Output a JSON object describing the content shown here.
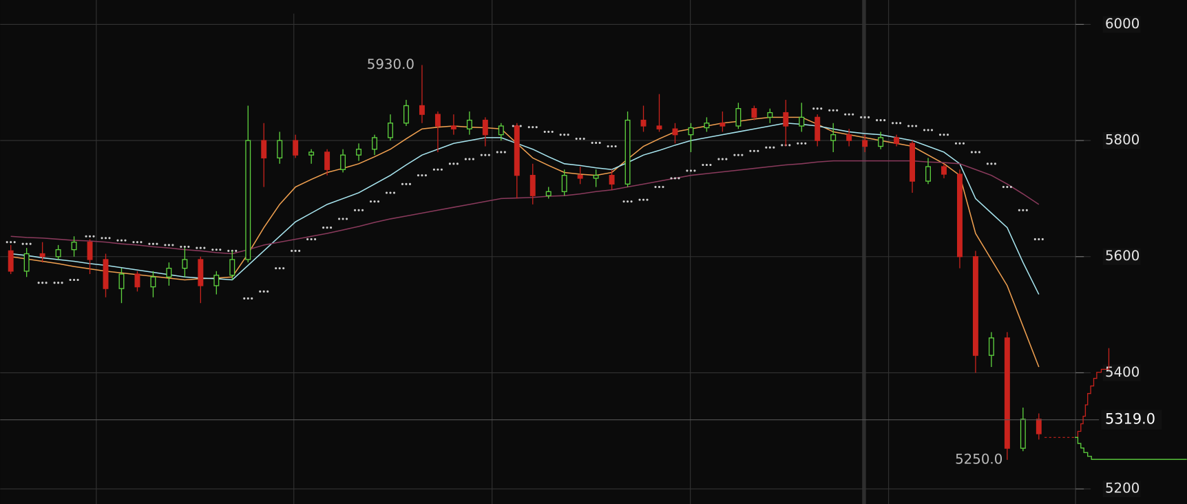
{
  "chart_data": {
    "type": "candlestick",
    "ylim": [
      5174,
      6042
    ],
    "yticks": [
      5200,
      5400,
      5600,
      5800,
      6000
    ],
    "up_color": "#5fd33f",
    "down_color": "#c9231d",
    "grid": true,
    "open": [
      5610,
      5575,
      5605,
      5600,
      5612,
      5625,
      5595,
      5545,
      5570,
      5548,
      5565,
      5580,
      5595,
      5550,
      5568,
      5595,
      5800,
      5770,
      5800,
      5775,
      5780,
      5750,
      5775,
      5785,
      5805,
      5830,
      5860,
      5845,
      5825,
      5820,
      5835,
      5810,
      5825,
      5740,
      5705,
      5712,
      5740,
      5735,
      5740,
      5725,
      5835,
      5825,
      5820,
      5810,
      5822,
      5830,
      5825,
      5855,
      5840,
      5848,
      5825,
      5840,
      5800,
      5810,
      5800,
      5790,
      5805,
      5795,
      5730,
      5755,
      5742,
      5600,
      5430,
      5460,
      5270,
      5320
    ],
    "high": [
      5620,
      5615,
      5625,
      5620,
      5635,
      5630,
      5605,
      5580,
      5575,
      5575,
      5590,
      5615,
      5600,
      5575,
      5610,
      5860,
      5830,
      5815,
      5810,
      5785,
      5785,
      5785,
      5795,
      5810,
      5845,
      5870,
      5930,
      5850,
      5845,
      5850,
      5840,
      5830,
      5830,
      5760,
      5720,
      5750,
      5755,
      5750,
      5750,
      5850,
      5860,
      5880,
      5830,
      5830,
      5840,
      5850,
      5865,
      5860,
      5855,
      5870,
      5865,
      5845,
      5830,
      5820,
      5810,
      5815,
      5810,
      5800,
      5770,
      5760,
      5750,
      5610,
      5470,
      5470,
      5340,
      5330
    ],
    "low": [
      5570,
      5565,
      5590,
      5595,
      5600,
      5570,
      5530,
      5520,
      5540,
      5530,
      5550,
      5565,
      5520,
      5535,
      5560,
      5590,
      5720,
      5760,
      5770,
      5760,
      5740,
      5745,
      5765,
      5775,
      5800,
      5825,
      5830,
      5780,
      5810,
      5810,
      5790,
      5800,
      5700,
      5690,
      5700,
      5705,
      5725,
      5720,
      5715,
      5720,
      5815,
      5815,
      5795,
      5780,
      5815,
      5815,
      5820,
      5835,
      5830,
      5790,
      5815,
      5790,
      5780,
      5790,
      5780,
      5785,
      5790,
      5710,
      5725,
      5735,
      5580,
      5400,
      5410,
      5250,
      5265,
      5285
    ],
    "close": [
      5575,
      5605,
      5600,
      5612,
      5625,
      5595,
      5545,
      5570,
      5548,
      5565,
      5580,
      5595,
      5550,
      5568,
      5595,
      5800,
      5770,
      5800,
      5775,
      5780,
      5750,
      5775,
      5785,
      5805,
      5830,
      5860,
      5845,
      5825,
      5820,
      5835,
      5810,
      5825,
      5740,
      5705,
      5712,
      5740,
      5735,
      5740,
      5725,
      5835,
      5825,
      5820,
      5810,
      5822,
      5830,
      5825,
      5855,
      5840,
      5848,
      5825,
      5840,
      5800,
      5810,
      5800,
      5790,
      5805,
      5795,
      5730,
      5755,
      5742,
      5600,
      5430,
      5460,
      5270,
      5320,
      5295
    ],
    "series": [
      {
        "color": "#f0a050",
        "values": [
          5600,
          5596,
          5592,
          5588,
          5583,
          5579,
          5575,
          5572,
          5569,
          5566,
          5563,
          5560,
          5562,
          5563,
          5565,
          5605,
          5650,
          5690,
          5720,
          5733,
          5745,
          5752,
          5760,
          5772,
          5785,
          5803,
          5820,
          5823,
          5825,
          5823,
          5822,
          5820,
          5795,
          5770,
          5757,
          5745,
          5742,
          5740,
          5745,
          5768,
          5790,
          5803,
          5815,
          5820,
          5825,
          5830,
          5833,
          5837,
          5840,
          5840,
          5840,
          5828,
          5815,
          5810,
          5805,
          5800,
          5795,
          5790,
          5775,
          5760,
          5740,
          5640,
          5595,
          5550,
          5480,
          5410
        ]
      },
      {
        "color": "#a8e6f0",
        "values": [
          5605,
          5602,
          5598,
          5595,
          5592,
          5588,
          5585,
          5581,
          5577,
          5573,
          5569,
          5565,
          5563,
          5562,
          5560,
          5585,
          5610,
          5635,
          5660,
          5675,
          5690,
          5700,
          5710,
          5725,
          5740,
          5758,
          5775,
          5785,
          5795,
          5800,
          5805,
          5805,
          5795,
          5785,
          5772,
          5760,
          5757,
          5753,
          5750,
          5762,
          5775,
          5783,
          5792,
          5800,
          5805,
          5810,
          5815,
          5820,
          5825,
          5830,
          5828,
          5825,
          5820,
          5815,
          5812,
          5810,
          5805,
          5800,
          5790,
          5780,
          5760,
          5700,
          5675,
          5650,
          5590,
          5535
        ]
      },
      {
        "color": "#8a3a5c",
        "values": [
          5635,
          5633,
          5632,
          5630,
          5628,
          5627,
          5625,
          5622,
          5620,
          5617,
          5615,
          5612,
          5610,
          5607,
          5605,
          5612,
          5620,
          5625,
          5630,
          5635,
          5640,
          5646,
          5652,
          5659,
          5665,
          5670,
          5675,
          5680,
          5685,
          5690,
          5695,
          5700,
          5701,
          5702,
          5704,
          5705,
          5708,
          5712,
          5715,
          5720,
          5725,
          5730,
          5735,
          5740,
          5743,
          5746,
          5749,
          5752,
          5755,
          5758,
          5760,
          5763,
          5765,
          5765,
          5765,
          5765,
          5765,
          5765,
          5763,
          5762,
          5760,
          5750,
          5740,
          5725,
          5708,
          5690
        ]
      }
    ],
    "sar": {
      "color": "#cfcfcf",
      "values": [
        5625,
        5622,
        5555,
        5555,
        5560,
        5635,
        5632,
        5628,
        5625,
        5622,
        5620,
        5617,
        5615,
        5612,
        5610,
        5528,
        5540,
        5580,
        5610,
        5630,
        5650,
        5665,
        5680,
        5695,
        5710,
        5725,
        5740,
        5750,
        5760,
        5768,
        5775,
        5780,
        5825,
        5823,
        5815,
        5810,
        5803,
        5796,
        5790,
        5695,
        5698,
        5720,
        5735,
        5748,
        5758,
        5768,
        5775,
        5782,
        5788,
        5792,
        5795,
        5855,
        5852,
        5845,
        5840,
        5835,
        5830,
        5825,
        5818,
        5810,
        5795,
        5780,
        5760,
        5720,
        5680,
        5630
      ]
    },
    "annotations": [
      {
        "value": 5930,
        "label": "5930.0"
      },
      {
        "value": 5250,
        "label": "5250.0"
      }
    ],
    "crosshair": {
      "value": 5319,
      "label": "5319.0"
    }
  }
}
